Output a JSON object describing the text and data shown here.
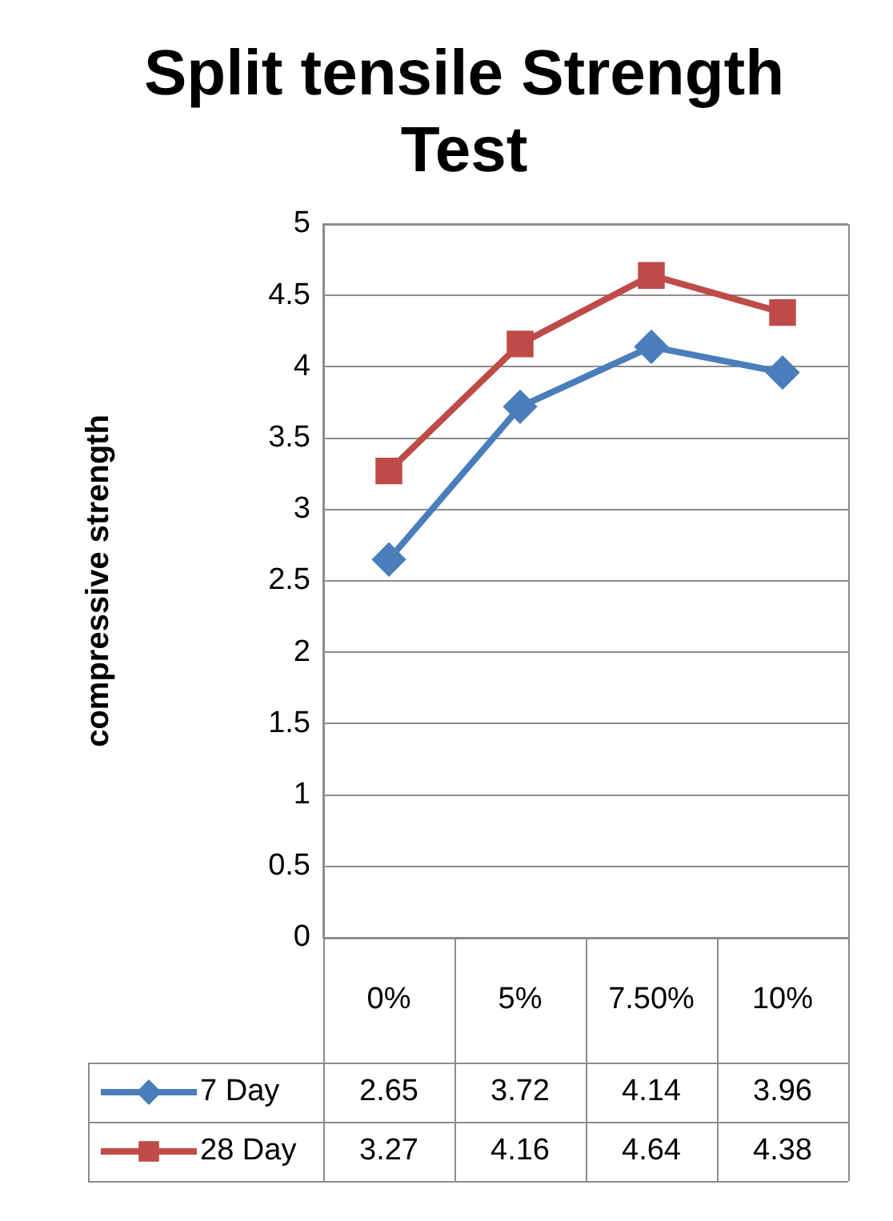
{
  "chart_data": {
    "type": "line",
    "title": "Split tensile Strength Test",
    "ylabel": "compressive strength",
    "categories": [
      "0%",
      "5%",
      "7.50%",
      "10%"
    ],
    "series": [
      {
        "name": "7 Day",
        "color": "#4a7ebb",
        "marker": "diamond",
        "values": [
          2.65,
          3.72,
          4.14,
          3.96
        ]
      },
      {
        "name": "28 Day",
        "color": "#be4b48",
        "marker": "square",
        "values": [
          3.27,
          4.16,
          4.64,
          4.38
        ]
      }
    ],
    "ylim": [
      0,
      5
    ],
    "yticks": [
      0,
      0.5,
      1,
      1.5,
      2,
      2.5,
      3,
      3.5,
      4,
      4.5,
      5
    ],
    "grid": "y",
    "legend": "bottom",
    "data_labels": true,
    "line_style": "solid"
  }
}
